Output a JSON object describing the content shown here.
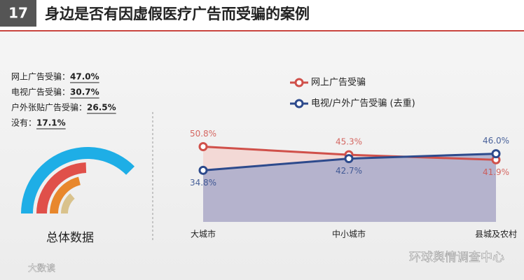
{
  "header": {
    "number": "17",
    "title": "身边是否有因虚假医疗广告而受骗的案例"
  },
  "chart_data": [
    {
      "type": "radial_bar",
      "label": "总体数据",
      "categories": [
        "网上广告受骗：",
        "电视广告受骗：",
        "户外张贴广告受骗：",
        "没有："
      ],
      "values": [
        47.0,
        30.7,
        26.5,
        17.1
      ],
      "value_labels": [
        "47.0%",
        "30.7%",
        "26.5%",
        "17.1%"
      ],
      "colors": [
        "#1eaee6",
        "#e0504a",
        "#e8872c",
        "#d9c28c"
      ]
    },
    {
      "type": "line",
      "categories": [
        "大城市",
        "中小城市",
        "县城及农村"
      ],
      "ylim": [
        0,
        60
      ],
      "legend": "top-left",
      "series": [
        {
          "name": "网上广告受骗",
          "color": "#d0504a",
          "area": "#f3d6d3",
          "values": [
            50.8,
            45.3,
            41.9
          ],
          "value_labels": [
            "50.8%",
            "45.3%",
            "41.9%"
          ]
        },
        {
          "name": "电视/户外广告受骗 (去重)",
          "color": "#2d4a8c",
          "area": "#a9abcb",
          "values": [
            34.8,
            42.7,
            46.0
          ],
          "value_labels": [
            "34.8%",
            "42.7%",
            "46.0%"
          ]
        }
      ]
    }
  ],
  "footer": {
    "source": "环球舆情调查中心",
    "mark": "大数读"
  }
}
